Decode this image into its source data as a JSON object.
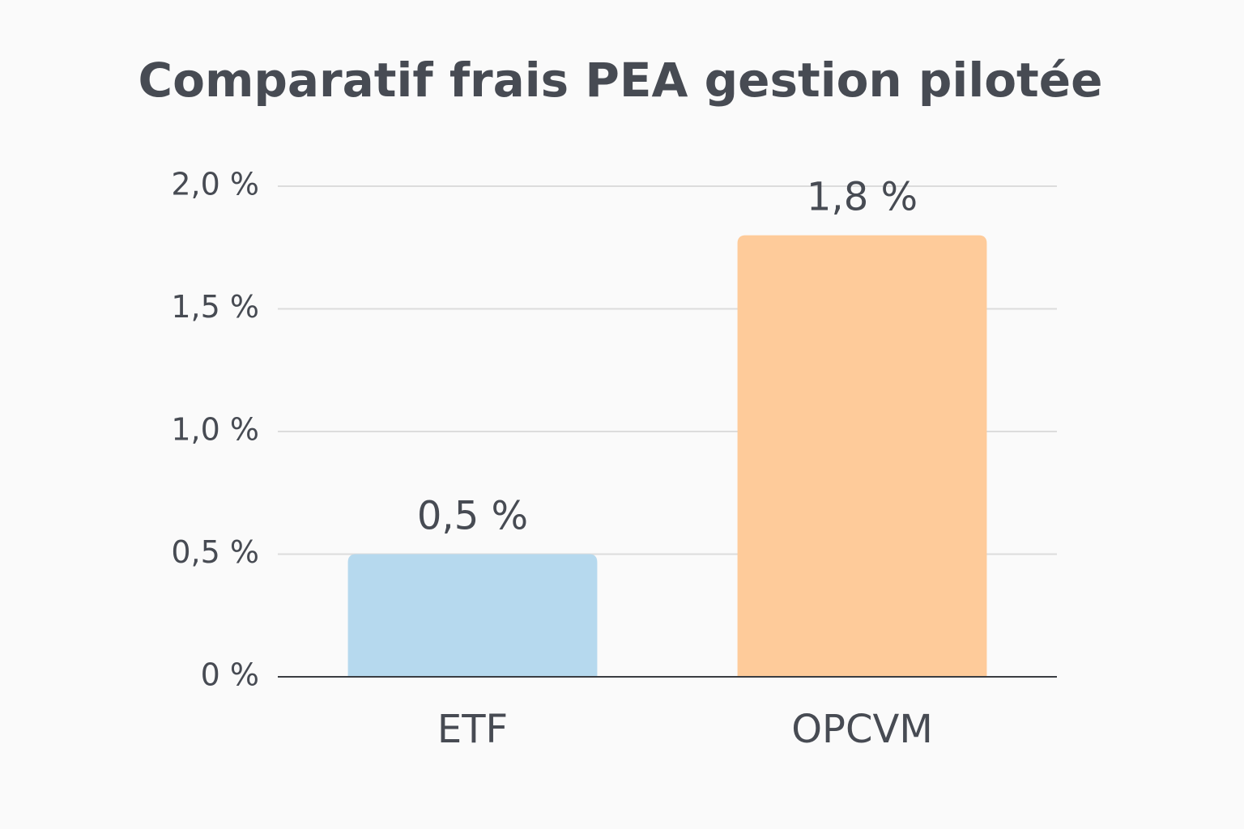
{
  "chart_data": {
    "type": "bar",
    "title": "Comparatif frais PEA gestion pilotée",
    "categories": [
      "ETF",
      "OPCVM"
    ],
    "values": [
      0.5,
      1.8
    ],
    "value_labels": [
      "0,5 %",
      "1,8 %"
    ],
    "colors": [
      "#b6d9ee",
      "#fecb9a"
    ],
    "ylim": [
      0,
      2
    ],
    "yticks": [
      {
        "value": 0,
        "label": "0 %"
      },
      {
        "value": 0.5,
        "label": "0,5 %"
      },
      {
        "value": 1,
        "label": "1,0 %"
      },
      {
        "value": 1.5,
        "label": "1,5 %"
      },
      {
        "value": 2,
        "label": "2,0 %"
      }
    ],
    "grid": true
  }
}
